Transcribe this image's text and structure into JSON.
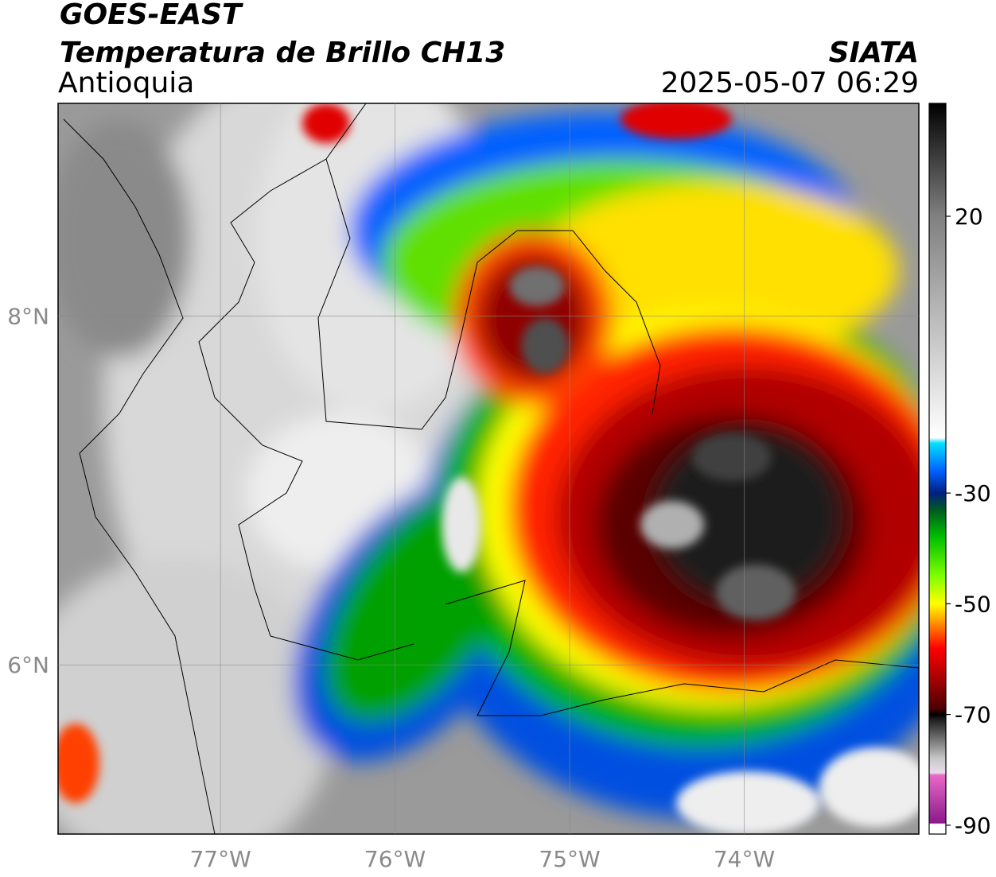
{
  "header": {
    "title": "GOES-EAST",
    "subtitle": "Temperatura de Brillo CH13",
    "region": "Antioquia",
    "source": "SIATA",
    "datetime": "2025-05-07 06:29"
  },
  "map": {
    "type": "raster-map",
    "xlim": [
      -77.93,
      -73.0
    ],
    "ylim": [
      5.03,
      9.22
    ],
    "xticks": [
      {
        "value": -77,
        "label": "77°W"
      },
      {
        "value": -76,
        "label": "76°W"
      },
      {
        "value": -75,
        "label": "75°W"
      },
      {
        "value": -74,
        "label": "74°W"
      }
    ],
    "yticks": [
      {
        "value": 8,
        "label": "8°N"
      },
      {
        "value": 6,
        "label": "6°N"
      }
    ],
    "grid": true
  },
  "colorbar": {
    "lim": [
      -91.6,
      40.4
    ],
    "ticks": [
      20,
      -30,
      -50,
      -70,
      -90
    ],
    "colormap": [
      {
        "value": -91.6,
        "color": "#ffffff"
      },
      {
        "value": -89.8,
        "color": "#ffffff"
      },
      {
        "value": -89.6,
        "color": "#8a1a8a"
      },
      {
        "value": -81,
        "color": "#e868c8"
      },
      {
        "value": -80.5,
        "color": "#eadcea"
      },
      {
        "value": -78,
        "color": "#c8c8c8"
      },
      {
        "value": -71,
        "color": "#202020"
      },
      {
        "value": -70,
        "color": "#000000"
      },
      {
        "value": -69,
        "color": "#4a0000"
      },
      {
        "value": -63,
        "color": "#b00000"
      },
      {
        "value": -58,
        "color": "#ff0000"
      },
      {
        "value": -54,
        "color": "#ff8000"
      },
      {
        "value": -50,
        "color": "#ffff00"
      },
      {
        "value": -45,
        "color": "#80ff00"
      },
      {
        "value": -38,
        "color": "#00c000"
      },
      {
        "value": -33,
        "color": "#005a20"
      },
      {
        "value": -30,
        "color": "#001f80"
      },
      {
        "value": -26,
        "color": "#0060ff"
      },
      {
        "value": -21,
        "color": "#00e0ff"
      },
      {
        "value": -20,
        "color": "#ffffff"
      },
      {
        "value": 0,
        "color": "#c0c0c0"
      },
      {
        "value": 20,
        "color": "#808080"
      },
      {
        "value": 40.4,
        "color": "#000000"
      }
    ]
  }
}
